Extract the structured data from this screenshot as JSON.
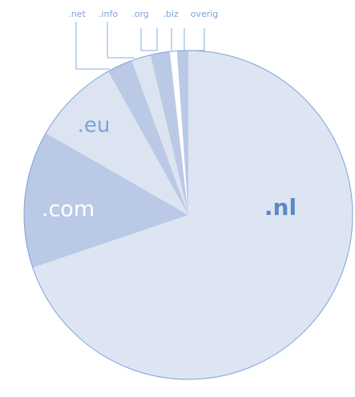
{
  "chart_data": {
    "type": "pie",
    "categories": [
      ".nl",
      ".com",
      ".eu",
      ".net",
      ".info",
      ".org",
      ".biz",
      "overig"
    ],
    "values": [
      69.8,
      13.5,
      8.6,
      2.5,
      1.9,
      1.9,
      0.7,
      1.1
    ],
    "colors": [
      "#dde5f3",
      "#b9c9e6",
      "#dce4f2",
      "#b9c9e6",
      "#dce4f2",
      "#b9c9e6",
      "#ffffff",
      "#b9c9e6"
    ],
    "start_angle": 0,
    "direction": "clockwise"
  }
}
